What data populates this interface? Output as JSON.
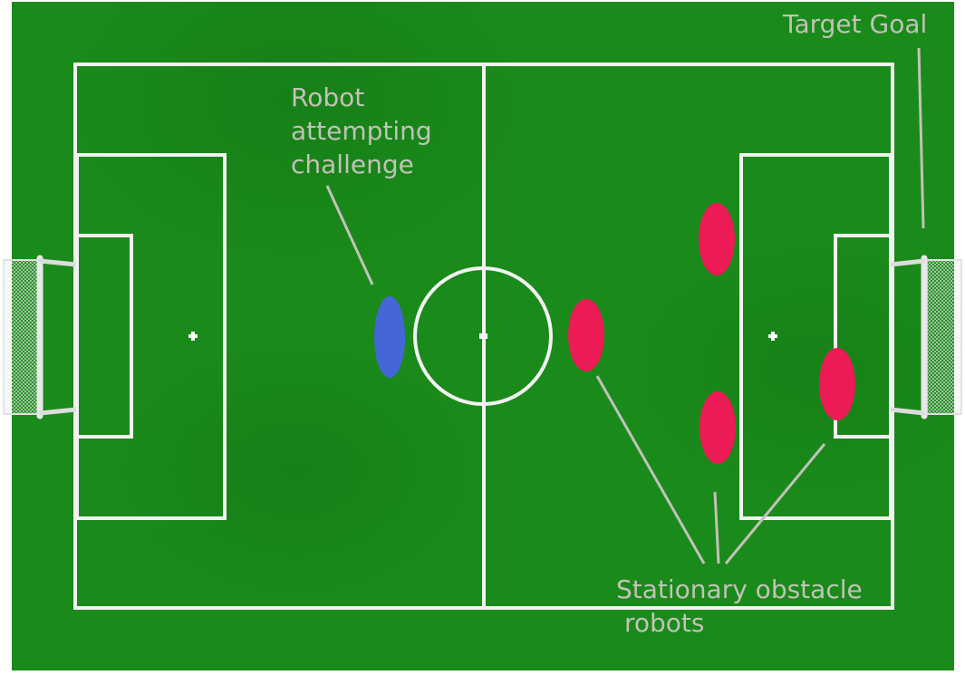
{
  "labels": {
    "target_goal": "Target Goal",
    "robot_challenge": [
      "Robot",
      "attempting",
      "challenge"
    ],
    "obstacles": [
      "Stationary obstacle",
      "robots"
    ]
  },
  "colors": {
    "grass": "#1a8a1a",
    "grass_dark": "#157515",
    "lines": "#f2f2f2",
    "challenger_robot": "#4466d6",
    "obstacle_robot": "#ec1a55",
    "annotation": "#c2c2b8",
    "background": "#ffffff"
  },
  "entities": {
    "challenger_count": 1,
    "obstacle_count": 4
  }
}
